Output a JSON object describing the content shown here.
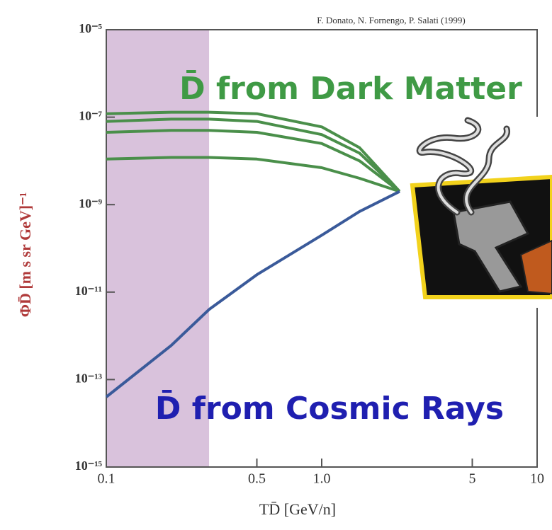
{
  "chart_data": {
    "type": "line",
    "credit": "F. Donato, N. Fornengo, P. Salati (1999)",
    "xlabel": "TD̄ [GeV/n]",
    "ylabel": "ΦD̄ [m s sr GeV]⁻¹",
    "annotations": [
      {
        "text": "D̄ from Dark Matter",
        "color": "#3f9a45"
      },
      {
        "text": "D̄ from Cosmic Rays",
        "color": "#1f1fb0"
      }
    ],
    "log_x": true,
    "log_y": true,
    "xlim": [
      0.1,
      10
    ],
    "ylim": [
      1e-15,
      1e-05
    ],
    "xticks": [
      0.1,
      0.5,
      {
        "value": 1,
        "label": "1.0"
      },
      5,
      10
    ],
    "yticks": [
      {
        "value": 1e-05,
        "label": "10⁻⁵"
      },
      {
        "value": 1e-07,
        "label": "10⁻⁷"
      },
      {
        "value": 1e-09,
        "label": "10⁻⁹"
      },
      {
        "value": 1e-11,
        "label": "10⁻¹¹"
      },
      {
        "value": 1e-13,
        "label": "10⁻¹³"
      },
      {
        "value": 1e-15,
        "label": "10⁻¹⁵"
      }
    ],
    "shaded_region": [
      0.1,
      0.3
    ],
    "x": [
      0.1,
      0.2,
      0.3,
      0.5,
      1.0,
      1.5,
      2.3
    ],
    "series": [
      {
        "color": "#4a8f4a",
        "values": [
          1.2e-07,
          1.3e-07,
          1.3e-07,
          1.2e-07,
          6e-08,
          2e-08,
          2e-09
        ]
      },
      {
        "color": "#4a8f4a",
        "values": [
          8e-08,
          9e-08,
          9e-08,
          8e-08,
          4e-08,
          1.5e-08,
          2e-09
        ]
      },
      {
        "color": "#4a8f4a",
        "values": [
          4.5e-08,
          5e-08,
          5e-08,
          4.5e-08,
          2.5e-08,
          1e-08,
          2e-09
        ]
      },
      {
        "color": "#4a8f4a",
        "values": [
          1.1e-08,
          1.2e-08,
          1.2e-08,
          1.1e-08,
          7e-09,
          4e-09,
          2e-09
        ]
      },
      {
        "color": "#3a5a9a",
        "values": [
          4e-14,
          6e-13,
          4e-12,
          2.5e-11,
          2e-10,
          7e-10,
          2e-09
        ]
      }
    ]
  }
}
